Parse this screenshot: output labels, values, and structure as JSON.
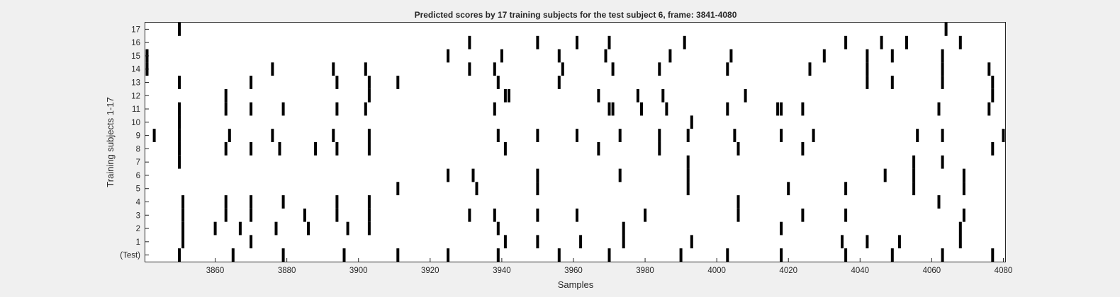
{
  "chart_data": {
    "type": "heatmap",
    "title": "Predicted scores by 17 training subjects for the test subject 6, frame: 3841-4080",
    "xlabel": "Samples",
    "ylabel": "Training subjects 1-17",
    "xlim": [
      3841,
      4080
    ],
    "xticks": [
      3860,
      3880,
      3900,
      3920,
      3940,
      3960,
      3980,
      4000,
      4020,
      4040,
      4060,
      4080
    ],
    "rows": [
      "(Test)",
      "1",
      "2",
      "3",
      "4",
      "5",
      "6",
      "7",
      "8",
      "9",
      "10",
      "11",
      "12",
      "13",
      "14",
      "15",
      "16",
      "17"
    ],
    "colors": {
      "mark": "#000000",
      "background": "#ffffff",
      "figure": "#f0f0f0"
    },
    "events": [
      {
        "x": 3850,
        "rows": [
          "(Test)",
          "7",
          "8",
          "9",
          "10",
          "11",
          "13",
          "17"
        ]
      },
      {
        "x": 3851,
        "rows": [
          "1",
          "2",
          "3",
          "4"
        ]
      },
      {
        "x": 3865,
        "rows": [
          "(Test)"
        ]
      },
      {
        "x": 3879,
        "rows": [
          "(Test)"
        ]
      },
      {
        "x": 3896,
        "rows": [
          "(Test)"
        ]
      },
      {
        "x": 3911,
        "rows": [
          "(Test)",
          "5",
          "13"
        ]
      },
      {
        "x": 3925,
        "rows": [
          "(Test)",
          "15"
        ]
      },
      {
        "x": 3939,
        "rows": [
          "(Test)",
          "2",
          "9",
          "13"
        ]
      },
      {
        "x": 3956,
        "rows": [
          "(Test)",
          "13",
          "15"
        ]
      },
      {
        "x": 3970,
        "rows": [
          "(Test)",
          "11",
          "16"
        ]
      },
      {
        "x": 3990,
        "rows": [
          "(Test)"
        ]
      },
      {
        "x": 4003,
        "rows": [
          "(Test)",
          "11",
          "14"
        ]
      },
      {
        "x": 4018,
        "rows": [
          "(Test)",
          "2",
          "11"
        ]
      },
      {
        "x": 4036,
        "rows": [
          "(Test)",
          "3",
          "5",
          "16"
        ]
      },
      {
        "x": 4049,
        "rows": [
          "(Test)"
        ]
      },
      {
        "x": 4063,
        "rows": [
          "(Test)",
          "7"
        ]
      },
      {
        "x": 4077,
        "rows": [
          "(Test)"
        ]
      },
      {
        "x": 3870,
        "rows": [
          "1",
          "3",
          "4",
          "8",
          "11",
          "13"
        ]
      },
      {
        "x": 3941,
        "rows": [
          "1",
          "8",
          "12"
        ]
      },
      {
        "x": 3950,
        "rows": [
          "1",
          "3"
        ]
      },
      {
        "x": 3962,
        "rows": [
          "1"
        ]
      },
      {
        "x": 3974,
        "rows": [
          "1",
          "2"
        ]
      },
      {
        "x": 3993,
        "rows": [
          "1",
          "10"
        ]
      },
      {
        "x": 4035,
        "rows": [
          "1"
        ]
      },
      {
        "x": 4042,
        "rows": [
          "1"
        ]
      },
      {
        "x": 4051,
        "rows": [
          "1"
        ]
      },
      {
        "x": 4068,
        "rows": [
          "1",
          "2"
        ]
      },
      {
        "x": 3860,
        "rows": [
          "2"
        ]
      },
      {
        "x": 3867,
        "rows": [
          "2"
        ]
      },
      {
        "x": 3877,
        "rows": [
          "2"
        ]
      },
      {
        "x": 3886,
        "rows": [
          "2"
        ]
      },
      {
        "x": 3897,
        "rows": [
          "2"
        ]
      },
      {
        "x": 3903,
        "rows": [
          "2",
          "3",
          "4",
          "8",
          "9",
          "12",
          "13"
        ]
      },
      {
        "x": 3863,
        "rows": [
          "3",
          "4",
          "8",
          "11",
          "12"
        ]
      },
      {
        "x": 3885,
        "rows": [
          "3"
        ]
      },
      {
        "x": 3894,
        "rows": [
          "3",
          "4",
          "8",
          "11",
          "13"
        ]
      },
      {
        "x": 3931,
        "rows": [
          "3",
          "14",
          "16"
        ]
      },
      {
        "x": 3938,
        "rows": [
          "3",
          "11",
          "14"
        ]
      },
      {
        "x": 3961,
        "rows": [
          "3",
          "9",
          "16"
        ]
      },
      {
        "x": 3980,
        "rows": [
          "3"
        ]
      },
      {
        "x": 4006,
        "rows": [
          "3",
          "4",
          "8"
        ]
      },
      {
        "x": 4024,
        "rows": [
          "3"
        ]
      },
      {
        "x": 4069,
        "rows": [
          "3",
          "5",
          "6"
        ]
      },
      {
        "x": 3879,
        "rows": [
          "4",
          "11"
        ]
      },
      {
        "x": 4062,
        "rows": [
          "4",
          "11"
        ]
      },
      {
        "x": 3933,
        "rows": [
          "5"
        ]
      },
      {
        "x": 3950,
        "rows": [
          "5",
          "6"
        ]
      },
      {
        "x": 3992,
        "rows": [
          "5",
          "6",
          "7",
          "9"
        ]
      },
      {
        "x": 4020,
        "rows": [
          "5"
        ]
      },
      {
        "x": 4055,
        "rows": [
          "5",
          "6",
          "7"
        ]
      },
      {
        "x": 3925,
        "rows": [
          "6"
        ]
      },
      {
        "x": 3932,
        "rows": [
          "6"
        ]
      },
      {
        "x": 3973,
        "rows": [
          "6",
          "9"
        ]
      },
      {
        "x": 4047,
        "rows": [
          "6"
        ]
      },
      {
        "x": 3878,
        "rows": [
          "8"
        ]
      },
      {
        "x": 3888,
        "rows": [
          "8"
        ]
      },
      {
        "x": 3967,
        "rows": [
          "8",
          "12"
        ]
      },
      {
        "x": 3984,
        "rows": [
          "8",
          "9"
        ]
      },
      {
        "x": 4024,
        "rows": [
          "8",
          "11"
        ]
      },
      {
        "x": 4077,
        "rows": [
          "8",
          "12",
          "13"
        ]
      },
      {
        "x": 3843,
        "rows": [
          "9"
        ]
      },
      {
        "x": 3864,
        "rows": [
          "9"
        ]
      },
      {
        "x": 3876,
        "rows": [
          "9",
          "14"
        ]
      },
      {
        "x": 3893,
        "rows": [
          "9",
          "14"
        ]
      },
      {
        "x": 3950,
        "rows": [
          "9",
          "16"
        ]
      },
      {
        "x": 4005,
        "rows": [
          "9"
        ]
      },
      {
        "x": 4018,
        "rows": [
          "9"
        ]
      },
      {
        "x": 4027,
        "rows": [
          "9"
        ]
      },
      {
        "x": 4056,
        "rows": [
          "9"
        ]
      },
      {
        "x": 4063,
        "rows": [
          "9",
          "13",
          "14",
          "15"
        ]
      },
      {
        "x": 4080,
        "rows": [
          "9"
        ]
      },
      {
        "x": 3902,
        "rows": [
          "11",
          "14"
        ]
      },
      {
        "x": 3971,
        "rows": [
          "11",
          "14"
        ]
      },
      {
        "x": 3979,
        "rows": [
          "11"
        ]
      },
      {
        "x": 3986,
        "rows": [
          "11"
        ]
      },
      {
        "x": 4017,
        "rows": [
          "11"
        ]
      },
      {
        "x": 4076,
        "rows": [
          "11",
          "14"
        ]
      },
      {
        "x": 3942,
        "rows": [
          "12"
        ]
      },
      {
        "x": 3978,
        "rows": [
          "12"
        ]
      },
      {
        "x": 3985,
        "rows": [
          "12"
        ]
      },
      {
        "x": 4008,
        "rows": [
          "12"
        ]
      },
      {
        "x": 4042,
        "rows": [
          "13",
          "14",
          "15"
        ]
      },
      {
        "x": 4049,
        "rows": [
          "13",
          "15"
        ]
      },
      {
        "x": 3984,
        "rows": [
          "14"
        ]
      },
      {
        "x": 4026,
        "rows": [
          "14"
        ]
      },
      {
        "x": 3841,
        "rows": [
          "14",
          "15"
        ]
      },
      {
        "x": 3940,
        "rows": [
          "15"
        ]
      },
      {
        "x": 3957,
        "rows": [
          "14"
        ]
      },
      {
        "x": 3969,
        "rows": [
          "15"
        ]
      },
      {
        "x": 3987,
        "rows": [
          "15"
        ]
      },
      {
        "x": 4004,
        "rows": [
          "15"
        ]
      },
      {
        "x": 4030,
        "rows": [
          "15"
        ]
      },
      {
        "x": 3991,
        "rows": [
          "16"
        ]
      },
      {
        "x": 4046,
        "rows": [
          "16"
        ]
      },
      {
        "x": 4053,
        "rows": [
          "16"
        ]
      },
      {
        "x": 4068,
        "rows": [
          "16"
        ]
      },
      {
        "x": 4064,
        "rows": [
          "17"
        ]
      }
    ]
  }
}
